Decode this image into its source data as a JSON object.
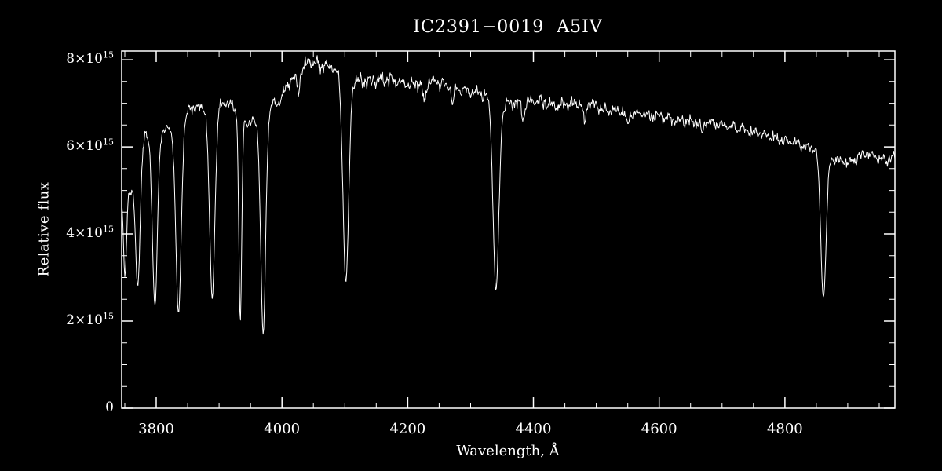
{
  "chart_data": {
    "type": "line",
    "title": "IC2391−0019  A5IV",
    "xlabel": "Wavelength, Å",
    "ylabel": "Relative flux",
    "line_color": "#ffffff",
    "background_color": "#000000",
    "grid": false,
    "legend": "none",
    "xlim": [
      3745,
      4975
    ],
    "ylim": [
      0,
      8.2
    ],
    "flux_unit": "1e15",
    "xticks": [
      {
        "v": 3800,
        "label": "3800"
      },
      {
        "v": 4000,
        "label": "4000"
      },
      {
        "v": 4200,
        "label": "4200"
      },
      {
        "v": 4400,
        "label": "4400"
      },
      {
        "v": 4600,
        "label": "4600"
      },
      {
        "v": 4800,
        "label": "4800"
      }
    ],
    "yticks": [
      {
        "v": 0,
        "base": "0",
        "exp": ""
      },
      {
        "v": 2,
        "base": "2×10",
        "exp": "15"
      },
      {
        "v": 4,
        "base": "4×10",
        "exp": "15"
      },
      {
        "v": 6,
        "base": "6×10",
        "exp": "15"
      },
      {
        "v": 8,
        "base": "8×10",
        "exp": "15"
      }
    ],
    "x_minor_step": 50,
    "y_minor_step": 0.5,
    "continuum_points": [
      [
        3745,
        5.0
      ],
      [
        3757,
        5.0
      ],
      [
        3785,
        6.25
      ],
      [
        3817,
        6.4
      ],
      [
        3862,
        6.9
      ],
      [
        3911,
        7.0
      ],
      [
        3950,
        6.55
      ],
      [
        3990,
        7.0
      ],
      [
        4020,
        7.6
      ],
      [
        4045,
        7.95
      ],
      [
        4070,
        7.85
      ],
      [
        4130,
        7.5
      ],
      [
        4160,
        7.55
      ],
      [
        4200,
        7.45
      ],
      [
        4240,
        7.5
      ],
      [
        4280,
        7.35
      ],
      [
        4320,
        7.2
      ],
      [
        4360,
        7.0
      ],
      [
        4400,
        7.05
      ],
      [
        4440,
        6.95
      ],
      [
        4480,
        7.0
      ],
      [
        4520,
        6.85
      ],
      [
        4560,
        6.75
      ],
      [
        4600,
        6.7
      ],
      [
        4640,
        6.6
      ],
      [
        4680,
        6.55
      ],
      [
        4720,
        6.45
      ],
      [
        4760,
        6.3
      ],
      [
        4800,
        6.15
      ],
      [
        4840,
        6.0
      ],
      [
        4870,
        5.75
      ],
      [
        4900,
        5.65
      ],
      [
        4930,
        5.85
      ],
      [
        4960,
        5.7
      ],
      [
        4975,
        5.75
      ]
    ],
    "absorption_lines": [
      {
        "center": 3750.2,
        "depth": 0.4,
        "sigma": 3.5
      },
      {
        "center": 3770.6,
        "depth": 0.5,
        "sigma": 5.0
      },
      {
        "center": 3797.9,
        "depth": 0.63,
        "sigma": 5.5
      },
      {
        "center": 3835.4,
        "depth": 0.67,
        "sigma": 6.0
      },
      {
        "center": 3889.0,
        "depth": 0.635,
        "sigma": 6.0
      },
      {
        "center": 3933.7,
        "depth": 0.71,
        "sigma": 3.2
      },
      {
        "center": 3970.1,
        "depth": 0.75,
        "sigma": 5.5
      },
      {
        "center": 4101.7,
        "depth": 0.62,
        "sigma": 6.5
      },
      {
        "center": 4340.5,
        "depth": 0.62,
        "sigma": 6.5
      },
      {
        "center": 4861.3,
        "depth": 0.56,
        "sigma": 6.0
      },
      {
        "center": 4026.2,
        "depth": 0.05,
        "sigma": 3.0
      },
      {
        "center": 4226.7,
        "depth": 0.07,
        "sigma": 3.0
      },
      {
        "center": 4271.8,
        "depth": 0.05,
        "sigma": 3.0
      },
      {
        "center": 4383.5,
        "depth": 0.06,
        "sigma": 3.0
      },
      {
        "center": 4481.2,
        "depth": 0.07,
        "sigma": 3.0
      },
      {
        "center": 4549.5,
        "depth": 0.04,
        "sigma": 3.0
      },
      {
        "center": 4668.0,
        "depth": 0.04,
        "sigma": 3.0
      }
    ],
    "noise_amplitude": 0.016,
    "sample_step": 1.0
  }
}
